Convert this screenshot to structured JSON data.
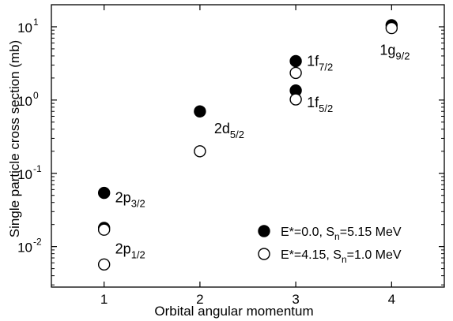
{
  "chart_data": {
    "type": "scatter",
    "xlabel": "Orbital angular momentum",
    "ylabel": "Single particle cross section (mb)",
    "xlim": [
      0.45,
      4.55
    ],
    "ylim": [
      0.0028,
      20
    ],
    "yscale": "log",
    "xticks": [
      1,
      2,
      3,
      4
    ],
    "xtick_labels": [
      "1",
      "2",
      "3",
      "4"
    ],
    "yticks": [
      0.01,
      0.1,
      1,
      10
    ],
    "ytick_labels": [
      {
        "base": "10",
        "exp": "-2"
      },
      {
        "base": "10",
        "exp": "-1"
      },
      {
        "base": "10",
        "exp": "0"
      },
      {
        "base": "10",
        "exp": "1"
      }
    ],
    "grid": false,
    "legend_position": "bottom-right",
    "series": [
      {
        "name": "E*=0.0, S_n=5.15 MeV",
        "legend": {
          "pre": "E*=0.0, S",
          "sub": "n",
          "post": "=5.15 MeV"
        },
        "marker": "filled-circle",
        "color": "#000000",
        "points": [
          {
            "x": 1,
            "y": 0.054
          },
          {
            "x": 1,
            "y": 0.018
          },
          {
            "x": 2,
            "y": 0.7
          },
          {
            "x": 3,
            "y": 3.4
          },
          {
            "x": 3,
            "y": 1.35
          },
          {
            "x": 4,
            "y": 10.5
          }
        ]
      },
      {
        "name": "E*=4.15, S_n=1.0 MeV",
        "legend": {
          "pre": "E*=4.15, S",
          "sub": "n",
          "post": "=1.0 MeV"
        },
        "marker": "open-circle",
        "color": "#000000",
        "points": [
          {
            "x": 1,
            "y": 0.017
          },
          {
            "x": 1,
            "y": 0.0057
          },
          {
            "x": 2,
            "y": 0.2
          },
          {
            "x": 3,
            "y": 2.35
          },
          {
            "x": 3,
            "y": 1.02
          },
          {
            "x": 4,
            "y": 9.6
          }
        ]
      }
    ],
    "annotations": [
      {
        "main": "2p",
        "sub": "3/2",
        "x": 1,
        "y": 0.054
      },
      {
        "main": "2p",
        "sub": "1/2",
        "x": 1,
        "y": 0.0057
      },
      {
        "main": "2d",
        "sub": "5/2",
        "x": 2,
        "y": 0.7
      },
      {
        "main": "1f",
        "sub": "7/2",
        "x": 3,
        "y": 3.4
      },
      {
        "main": "1f",
        "sub": "5/2",
        "x": 3,
        "y": 1.02
      },
      {
        "main": "1g",
        "sub": "9/2",
        "x": 4,
        "y": 9.6
      }
    ]
  }
}
